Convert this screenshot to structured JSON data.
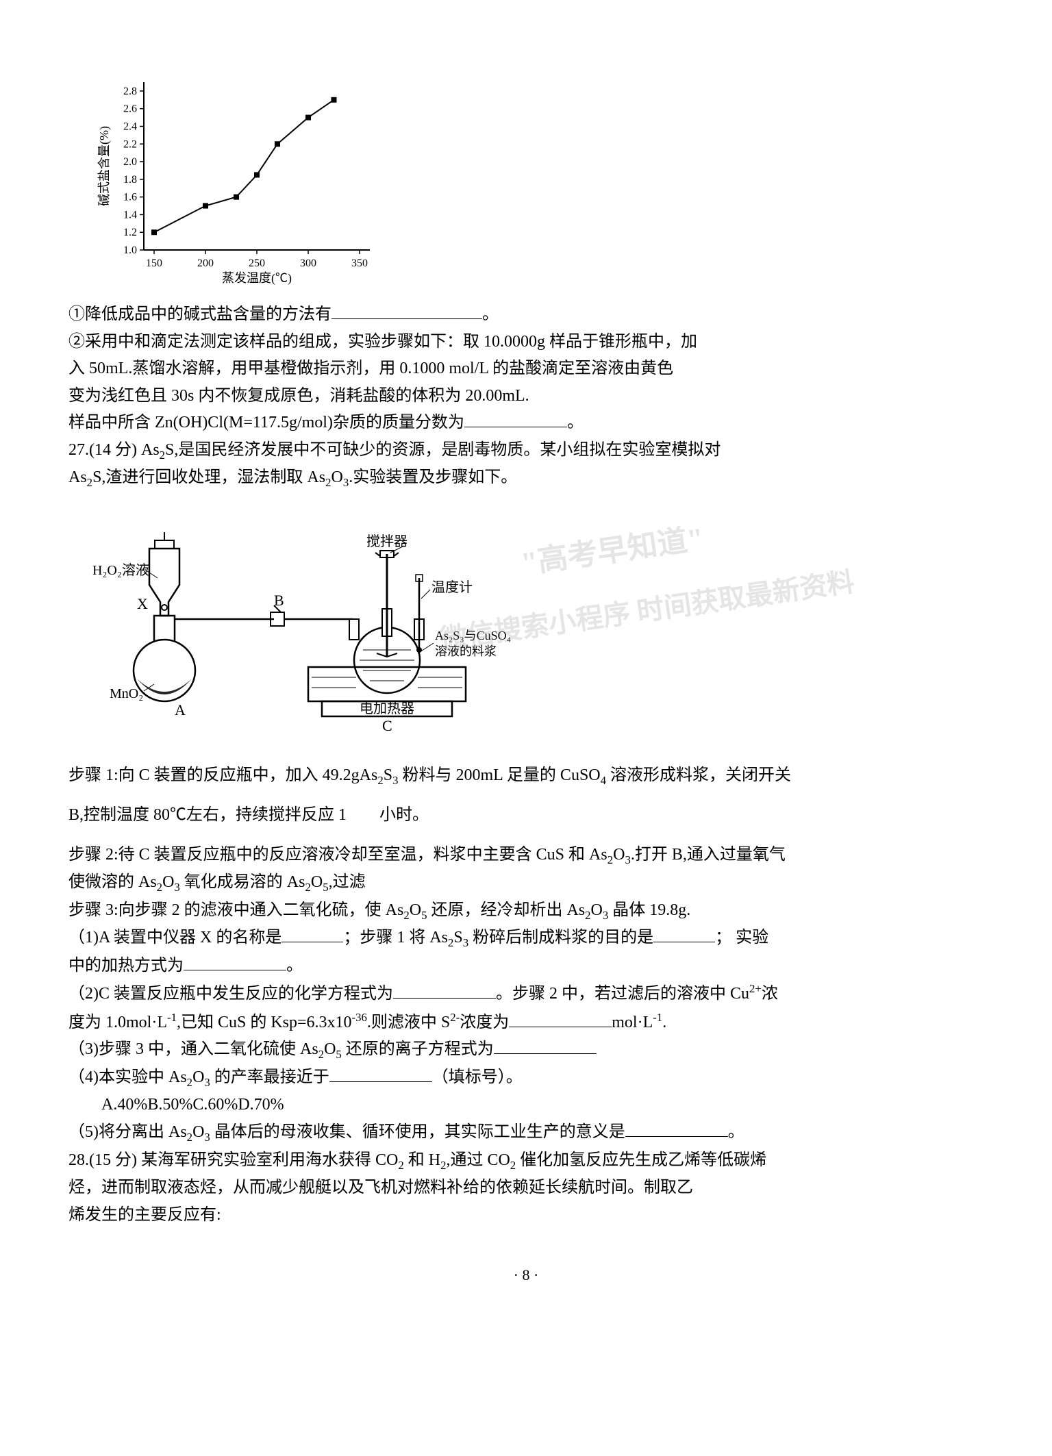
{
  "chart": {
    "type": "line-scatter",
    "xlabel": "蒸发温度(℃)",
    "ylabel": "碱式盐含量(%)",
    "xlim": [
      140,
      360
    ],
    "ylim": [
      1.0,
      2.9
    ],
    "xticks": [
      150,
      200,
      250,
      300,
      350
    ],
    "yticks": [
      1.0,
      1.2,
      1.4,
      1.6,
      1.8,
      2.0,
      2.2,
      2.4,
      2.6,
      2.8
    ],
    "points": [
      {
        "x": 150,
        "y": 1.2
      },
      {
        "x": 200,
        "y": 1.5
      },
      {
        "x": 230,
        "y": 1.6
      },
      {
        "x": 250,
        "y": 1.85
      },
      {
        "x": 270,
        "y": 2.2
      },
      {
        "x": 300,
        "y": 2.5
      },
      {
        "x": 325,
        "y": 2.7
      }
    ],
    "marker": "square",
    "marker_size": 8,
    "line_color": "#000000",
    "marker_color": "#000000",
    "axis_color": "#000000",
    "background_color": "#ffffff",
    "label_fontsize": 18,
    "tick_fontsize": 16
  },
  "p1": "①降低成品中的碱式盐含量的方法有",
  "p1_end": "。",
  "p2": "②采用中和滴定法测定该样品的组成，实验步骤如下：取 10.0000g 样品于锥形瓶中，加",
  "p3": "入 50mL.蒸馏水溶解，用甲基橙做指示剂，用 0.1000 mol/L 的盐酸滴定至溶液由黄色",
  "p4": "变为浅红色且 30s 内不恢复成原色，消耗盐酸的体积为 20.00mL.",
  "p5": "样品中所含 Zn(OH)Cl(M=117.5g/mol)杂质的质量分数为",
  "p5_end": "。",
  "p6a": "27.(14 分)  As",
  "p6b": "S,是国民经济发展中不可缺少的资源，是剧毒物质。某小组拟在实验室模拟对",
  "p7a": "As",
  "p7b": "S,渣进行回收处理，湿法制取 As",
  "p7c": "O",
  "p7d": ".实验装置及步骤如下。",
  "diagram": {
    "flask_label": "H₂O₂溶液",
    "x_label": "X",
    "b_label": "B",
    "mno2_label": "MnO₂",
    "a_label": "A",
    "stirrer_label": "搅拌器",
    "thermo_label": "温度计",
    "slurry_label_1": "As₂S₃与CuSO₄",
    "slurry_label_2": "溶液的料浆",
    "heater_label": "电加热器",
    "c_label": "C"
  },
  "wm1": "\"高考早知道\"",
  "wm2": "微信搜索小程序  时间获取最新资料",
  "s1a": "步骤 1:向 C 装置的反应瓶中，加入 49.2gAs",
  "s1b": "S",
  "s1c": " 粉料与 200mL 足量的 CuSO",
  "s1d": " 溶液形成料浆，关闭开关",
  "s2": "B,控制温度 80℃左右，持续搅拌反应 1　　小时。",
  "s3a": "步骤 2:待 C 装置反应瓶中的反应溶液冷却至室温，料浆中主要含 CuS 和 As",
  "s3b": "O",
  "s3c": ".打开 B,通入过量氧气",
  "s4a": "使微溶的 As",
  "s4b": "O",
  "s4c": " 氧化成易溶的 As",
  "s4d": "O",
  "s4e": ",过滤",
  "s5a": "步骤 3:向步骤 2 的滤液中通入二氧化硫，使 As",
  "s5b": "O",
  "s5c": " 还原，经冷却析出 As",
  "s5d": "O",
  "s5e": " 晶体 19.8g.",
  "q1a": "（1)A 装置中仪器 X 的名称是",
  "q1b": "；步骤 1 将 As",
  "q1c": "S",
  "q1d": " 粉碎后制成料浆的目的是",
  "q1e": "； 实验",
  "q1f": "中的加热方式为",
  "q1g": "。",
  "q2a": "（2)C 装置反应瓶中发生反应的化学方程式为",
  "q2b": "。步骤 2 中，若过滤后的溶液中 Cu",
  "q2c": "浓",
  "q2d": "度为 1.0mol·L",
  "q2e": ",已知 CuS 的 Ksp=6.3x10",
  "q2f": ".则滤液中 S",
  "q2g": "浓度为",
  "q2h": "mol·L",
  "q2i": ".",
  "q3a": "（3)步骤 3 中，通入二氧化硫使 As",
  "q3b": "O",
  "q3c": " 还原的离子方程式为",
  "q4a": "（4)本实验中 As",
  "q4b": "O",
  "q4c": " 的产率最接近于",
  "q4d": "（填标号）。",
  "q4opt": "A.40%B.50%C.60%D.70%",
  "q5a": "（5)将分离出 As",
  "q5b": "O",
  "q5c": " 晶体后的母液收集、循环使用，其实际工业生产的意义是",
  "q5d": "。",
  "p28a": "28.(15 分)  某海军研究实验室利用海水获得 CO",
  "p28b": " 和 H",
  "p28c": ",通过 CO",
  "p28d": " 催化加氢反应先生成乙烯等低碳烯",
  "p28e": "烃，进而制取液态烃，从而减少舰艇以及飞机对燃料补给的依赖延长续航时间。制取乙",
  "p28f": "烯发生的主要反应有:",
  "pagenum": "· 8 ·"
}
